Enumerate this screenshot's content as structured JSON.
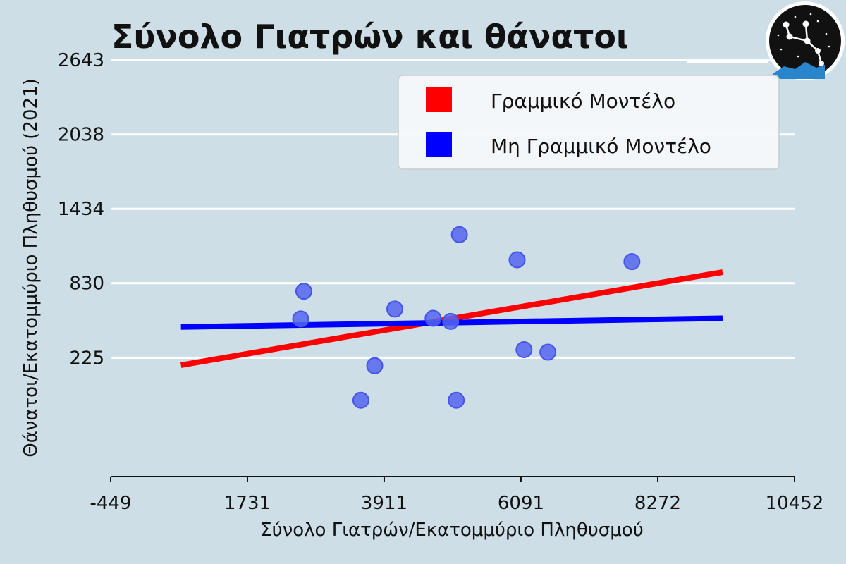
{
  "chart_data": {
    "type": "scatter",
    "title": "Σύνολο Γιατρών και θάνατοι",
    "xlabel": "Σύνολο Γιατρών/Εκατομμύριο Πληθυσμού",
    "ylabel": "Θάνατοι/Εκατομμύριο Πληθυσμού (2021)",
    "xlim": [
      -449,
      10452
    ],
    "ylim": [
      -740,
      2643
    ],
    "x_ticks": [
      "-449",
      "1731",
      "3911",
      "6091",
      "8272",
      "10452"
    ],
    "y_ticks": [
      "225",
      "830",
      "1434",
      "2038",
      "2643"
    ],
    "grid": "horizontal",
    "legend_position": "top-right",
    "points": [
      {
        "x": 2580,
        "y": 540
      },
      {
        "x": 2630,
        "y": 765
      },
      {
        "x": 3540,
        "y": -120
      },
      {
        "x": 3760,
        "y": 160
      },
      {
        "x": 4080,
        "y": 620
      },
      {
        "x": 4690,
        "y": 545
      },
      {
        "x": 4970,
        "y": 520
      },
      {
        "x": 5060,
        "y": -120
      },
      {
        "x": 5110,
        "y": 1225
      },
      {
        "x": 6030,
        "y": 1020
      },
      {
        "x": 6140,
        "y": 290
      },
      {
        "x": 6520,
        "y": 270
      },
      {
        "x": 7860,
        "y": 1005
      }
    ],
    "series": [
      {
        "name": "Γραμμικό Μοντέλο",
        "x": [
          671,
          9305
        ],
        "values": [
          165,
          920
        ]
      },
      {
        "name": "Μη Γραμμικό Μοντέλο",
        "x": [
          671,
          9305
        ],
        "values": [
          475,
          545
        ]
      }
    ],
    "colors": {
      "background": "#cddee6",
      "points": "#5566f0",
      "linear": "#ff0000",
      "nonlinear": "#0000ff",
      "grid": "#ffffff"
    }
  }
}
